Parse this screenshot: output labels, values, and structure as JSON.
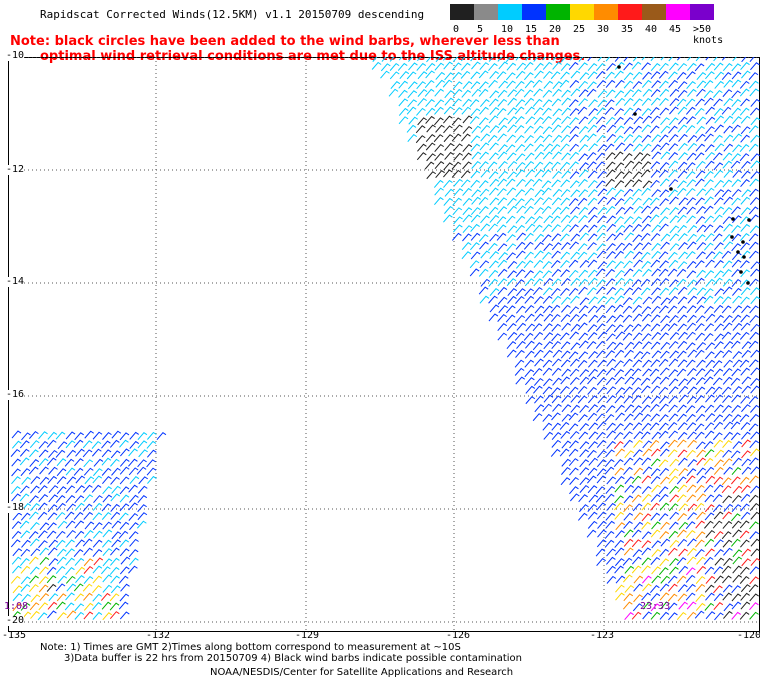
{
  "title": "Rapidscat Corrected Winds(12.5KM) v1.1 20150709 descending",
  "notes": {
    "line1": "Note: black circles have been added to the wind barbs, wherever less than",
    "line2": "optimal wind retrieval conditions are met due to the ISS altitude changes."
  },
  "colorbar": {
    "labels": [
      "0",
      "5",
      "10",
      "15",
      "20",
      "25",
      "30",
      "35",
      "40",
      "45",
      ">50 knots"
    ],
    "colors": [
      "#202020",
      "#8a8a8a",
      "#00ccff",
      "#0033ff",
      "#00b400",
      "#ffd800",
      "#ff8c00",
      "#ff1a1a",
      "#9a5a1a",
      "#ff00ff",
      "#7a00cc"
    ]
  },
  "lat_labels": [
    "-10",
    "-12",
    "-14",
    "-16",
    "-18",
    "-20"
  ],
  "lon_labels": [
    "-135",
    "-132",
    "-129",
    "-126",
    "-123",
    "-120"
  ],
  "times": [
    "1:08",
    "23:33"
  ],
  "footer": {
    "line1": "Note: 1) Times are GMT 2)Times along bottom correspond to measurement at ~10S",
    "line2": "3)Data buffer is 22 hrs from 20150709 4) Black wind barbs indicate possible contamination",
    "line3": "NOAA/NESDIS/Center for Satellite Applications and Research"
  }
}
